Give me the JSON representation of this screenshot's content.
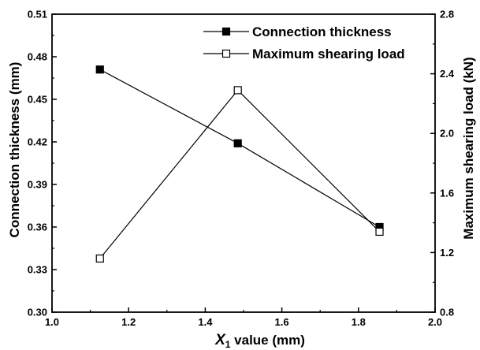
{
  "chart_data": {
    "type": "line",
    "xlabel": {
      "var": "X",
      "sub": "1",
      "rest": " value (mm)"
    },
    "ylabel_left": "Connection thickness (mm)",
    "ylabel_right": "Maximum shearing load (kN)",
    "xlim": [
      1.0,
      2.0
    ],
    "ylim_left": [
      0.3,
      0.51
    ],
    "ylim_right": [
      0.8,
      2.8
    ],
    "x_ticks": [
      "1.0",
      "1.2",
      "1.4",
      "1.6",
      "1.8",
      "2.0"
    ],
    "y_ticks_left": [
      "0.30",
      "0.33",
      "0.36",
      "0.39",
      "0.42",
      "0.45",
      "0.48",
      "0.51"
    ],
    "y_ticks_right": [
      "0.8",
      "1.2",
      "1.6",
      "2.0",
      "2.4",
      "2.8"
    ],
    "grid": false,
    "legend_position": "top-right",
    "series": [
      {
        "name": "Connection thickness",
        "axis": "left",
        "marker": "filled-square",
        "color": "#000000",
        "x": [
          1.125,
          1.485,
          1.855
        ],
        "y": [
          0.471,
          0.419,
          0.36
        ]
      },
      {
        "name": "Maximum shearing load",
        "axis": "right",
        "marker": "open-square",
        "color": "#000000",
        "x": [
          1.125,
          1.485,
          1.855
        ],
        "y": [
          1.16,
          2.29,
          1.34
        ]
      }
    ]
  }
}
